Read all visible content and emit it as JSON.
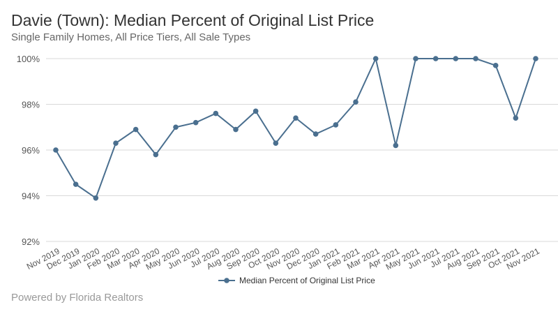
{
  "footer": "Powered by Florida Realtors",
  "chart_data": {
    "type": "line",
    "title": "Davie (Town): Median Percent of Original List Price",
    "subtitle": "Single Family Homes, All Price Tiers, All Sale Types",
    "xlabel": "",
    "ylabel": "",
    "ylim": [
      92,
      100
    ],
    "yticks": [
      "92%",
      "94%",
      "96%",
      "98%",
      "100%"
    ],
    "grid": true,
    "legend": "bottom",
    "color": "#4a6f8f",
    "categories": [
      "Nov 2019",
      "Dec 2019",
      "Jan 2020",
      "Feb 2020",
      "Mar 2020",
      "Apr 2020",
      "May 2020",
      "Jun 2020",
      "Jul 2020",
      "Aug 2020",
      "Sep 2020",
      "Oct 2020",
      "Nov 2020",
      "Dec 2020",
      "Jan 2021",
      "Feb 2021",
      "Mar 2021",
      "Apr 2021",
      "May 2021",
      "Jun 2021",
      "Jul 2021",
      "Aug 2021",
      "Sep 2021",
      "Oct 2021",
      "Nov 2021"
    ],
    "series": [
      {
        "name": "Median Percent of Original List Price",
        "values": [
          96.0,
          94.5,
          93.9,
          96.3,
          96.9,
          95.8,
          97.0,
          97.2,
          97.6,
          96.9,
          97.7,
          96.3,
          97.4,
          96.7,
          97.1,
          98.1,
          100,
          96.2,
          100,
          100,
          100,
          100,
          99.7,
          97.4,
          100
        ]
      }
    ]
  }
}
